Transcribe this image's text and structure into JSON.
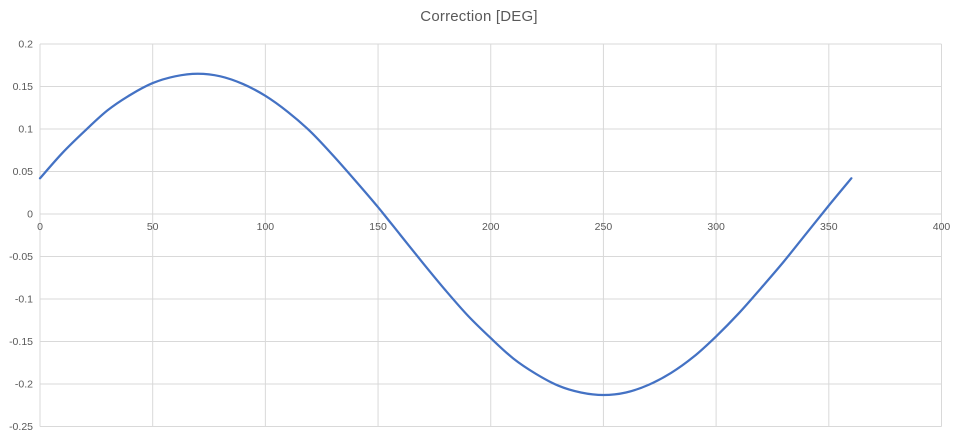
{
  "title": "Correction [DEG]",
  "colors": {
    "series_line": "#4472C4",
    "gridline": "#D9D9D9",
    "axis_label_text": "#595959",
    "title_text": "#595959",
    "background": "#FFFFFF"
  },
  "chart_data": {
    "type": "line",
    "title": "Correction [DEG]",
    "xlabel": "",
    "ylabel": "",
    "xlim": [
      0,
      400
    ],
    "ylim": [
      -0.25,
      0.2
    ],
    "x_ticks": [
      0,
      50,
      100,
      150,
      200,
      250,
      300,
      350,
      400
    ],
    "y_ticks": [
      0.2,
      0.15,
      0.1,
      0.05,
      0,
      -0.05,
      -0.1,
      -0.15,
      -0.2,
      -0.25
    ],
    "grid": true,
    "legend_position": "none",
    "smooth_line": true,
    "series": [
      {
        "name": "Correction",
        "x": [
          0,
          10,
          20,
          30,
          40,
          50,
          60,
          70,
          80,
          90,
          100,
          110,
          120,
          130,
          140,
          150,
          160,
          170,
          180,
          190,
          200,
          210,
          220,
          230,
          240,
          250,
          260,
          270,
          280,
          290,
          300,
          310,
          320,
          330,
          340,
          350,
          360
        ],
        "values": [
          0.042,
          0.072,
          0.098,
          0.122,
          0.14,
          0.154,
          0.162,
          0.165,
          0.162,
          0.153,
          0.139,
          0.12,
          0.097,
          0.069,
          0.039,
          0.008,
          -0.025,
          -0.058,
          -0.09,
          -0.12,
          -0.146,
          -0.17,
          -0.188,
          -0.202,
          -0.21,
          -0.213,
          -0.21,
          -0.201,
          -0.187,
          -0.168,
          -0.144,
          -0.117,
          -0.087,
          -0.056,
          -0.023,
          0.01,
          0.042
        ]
      }
    ]
  }
}
